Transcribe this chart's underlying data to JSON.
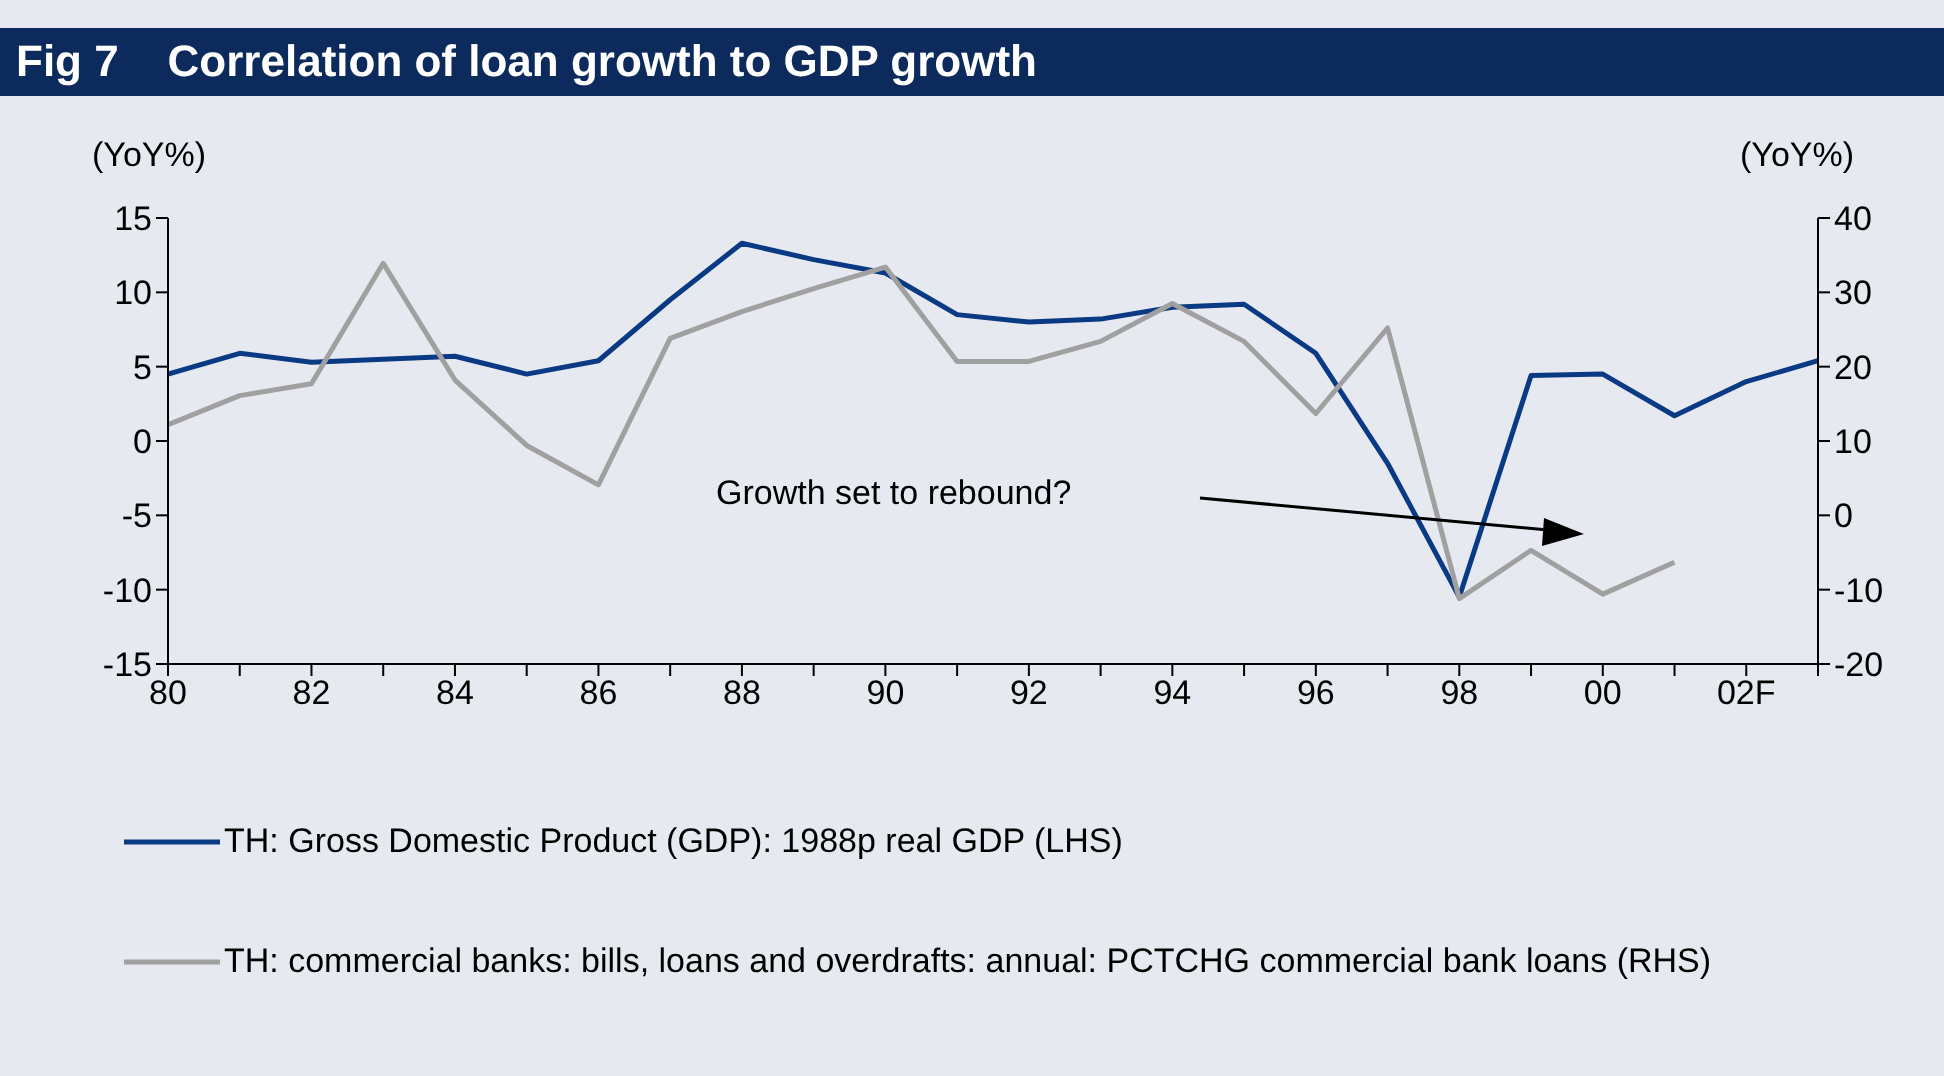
{
  "chart_data": {
    "type": "line",
    "title": "Fig 7    Correlation of loan growth to GDP growth",
    "ylabel": "(YoY%)",
    "y2label": "(YoY%)",
    "categories": [
      "80",
      null,
      "82",
      null,
      "84",
      null,
      "86",
      null,
      "88",
      null,
      "90",
      null,
      "92",
      null,
      "94",
      null,
      "96",
      null,
      "98",
      null,
      "00",
      null,
      "02F",
      null
    ],
    "series": [
      {
        "name": "TH: Gross Domestic Product (GDP): 1988p real GDP (LHS)",
        "color": "#0a3a84",
        "values": [
          4.5,
          5.9,
          5.3,
          5.5,
          5.7,
          4.5,
          5.4,
          9.5,
          13.3,
          12.2,
          11.3,
          8.5,
          8.0,
          8.2,
          9.0,
          9.2,
          5.9,
          -1.5,
          -10.5,
          4.4,
          4.5,
          1.7,
          4.0,
          5.4
        ]
      },
      {
        "name": "TH: commercial banks: bills, loans and overdrafts: annual: PCTCHG commercial bank loans (RHS)",
        "color": "#a0a0a0",
        "axis": "y2",
        "values": [
          12.2,
          16.1,
          17.7,
          33.9,
          18.2,
          9.4,
          4.1,
          23.8,
          27.4,
          30.5,
          33.4,
          20.7,
          20.7,
          23.4,
          28.5,
          23.4,
          13.7,
          25.2,
          -11.2,
          -4.7,
          -10.6,
          -6.3,
          null,
          null
        ]
      }
    ],
    "ylim": [
      -15,
      15
    ],
    "yticks": [
      -15,
      -10,
      -5,
      0,
      5,
      10,
      15
    ],
    "y2lim": [
      -20,
      40
    ],
    "y2ticks": [
      -20,
      -10,
      0,
      10,
      20,
      30,
      40
    ],
    "annotations": [
      "Growth set to rebound?"
    ],
    "legend": "bottom"
  }
}
